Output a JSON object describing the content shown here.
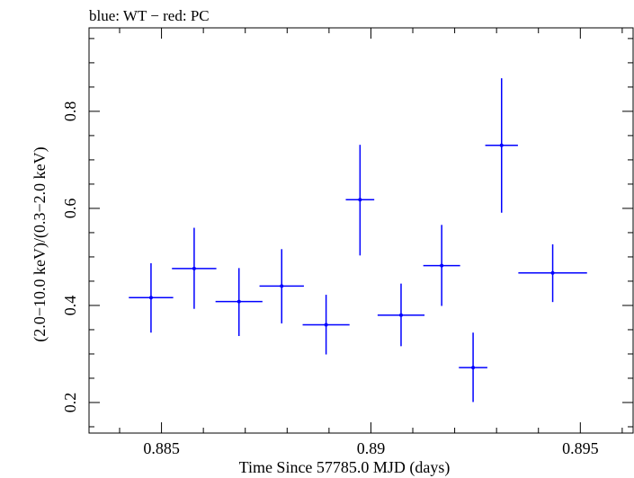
{
  "chart_data": {
    "type": "scatter",
    "title": "blue: WT − red: PC",
    "xlabel": "Time Since 57785.0 MJD (days)",
    "ylabel": "(2.0−10.0 keV)/(0.3−2.0 keV)",
    "xlim": [
      0.88327,
      0.89626
    ],
    "ylim": [
      0.137,
      0.972
    ],
    "x_ticks": [
      0.885,
      0.89,
      0.895
    ],
    "x_tick_labels": [
      "0.885",
      "0.89",
      "0.895"
    ],
    "y_ticks": [
      0.2,
      0.4,
      0.6,
      0.8
    ],
    "y_tick_labels": [
      "0.2",
      "0.4",
      "0.6",
      "0.8"
    ],
    "series": [
      {
        "name": "WT",
        "color": "#0000ff",
        "points": [
          {
            "x": 0.88475,
            "y": 0.416,
            "xerr": 0.00053,
            "ylo": 0.344,
            "yhi": 0.487
          },
          {
            "x": 0.88578,
            "y": 0.476,
            "xerr": 0.00053,
            "ylo": 0.393,
            "yhi": 0.56
          },
          {
            "x": 0.88685,
            "y": 0.408,
            "xerr": 0.00056,
            "ylo": 0.337,
            "yhi": 0.477
          },
          {
            "x": 0.88787,
            "y": 0.44,
            "xerr": 0.00053,
            "ylo": 0.363,
            "yhi": 0.516
          },
          {
            "x": 0.88893,
            "y": 0.36,
            "xerr": 0.00056,
            "ylo": 0.299,
            "yhi": 0.422
          },
          {
            "x": 0.88974,
            "y": 0.618,
            "xerr": 0.00034,
            "ylo": 0.503,
            "yhi": 0.731
          },
          {
            "x": 0.89072,
            "y": 0.38,
            "xerr": 0.00056,
            "ylo": 0.316,
            "yhi": 0.445
          },
          {
            "x": 0.89169,
            "y": 0.482,
            "xerr": 0.00044,
            "ylo": 0.399,
            "yhi": 0.566
          },
          {
            "x": 0.89244,
            "y": 0.272,
            "xerr": 0.00034,
            "ylo": 0.201,
            "yhi": 0.344
          },
          {
            "x": 0.89312,
            "y": 0.73,
            "xerr": 0.00039,
            "ylo": 0.591,
            "yhi": 0.868
          },
          {
            "x": 0.89434,
            "y": 0.467,
            "xerr": 0.00082,
            "ylo": 0.407,
            "yhi": 0.526
          }
        ]
      }
    ]
  }
}
